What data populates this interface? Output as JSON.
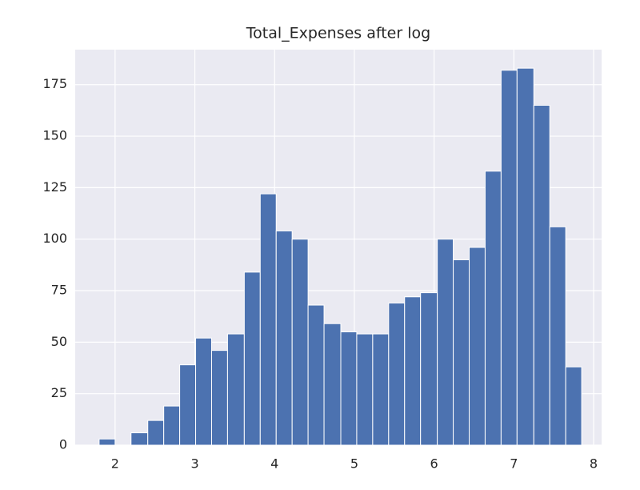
{
  "chart_data": {
    "type": "histogram",
    "title": "Total_Expenses after log",
    "bins": [
      1.8,
      2.0,
      2.2,
      2.41,
      2.61,
      2.81,
      3.01,
      3.21,
      3.41,
      3.62,
      3.82,
      4.02,
      4.22,
      4.42,
      4.62,
      4.83,
      5.03,
      5.23,
      5.43,
      5.63,
      5.83,
      6.04,
      6.24,
      6.44,
      6.64,
      6.84,
      7.04,
      7.25,
      7.45,
      7.65,
      7.85
    ],
    "counts": [
      3,
      0,
      6,
      12,
      19,
      39,
      52,
      46,
      54,
      84,
      122,
      104,
      100,
      68,
      59,
      55,
      54,
      54,
      69,
      72,
      74,
      100,
      90,
      96,
      133,
      182,
      183,
      165,
      106,
      38
    ],
    "color": "#4c72b0",
    "xlim": [
      1.5,
      8.1
    ],
    "xticks": [
      2,
      3,
      4,
      5,
      6,
      7,
      8
    ],
    "ylim": [
      0,
      192
    ],
    "yticks": [
      0,
      25,
      50,
      75,
      100,
      125,
      150,
      175
    ],
    "grid": true
  }
}
